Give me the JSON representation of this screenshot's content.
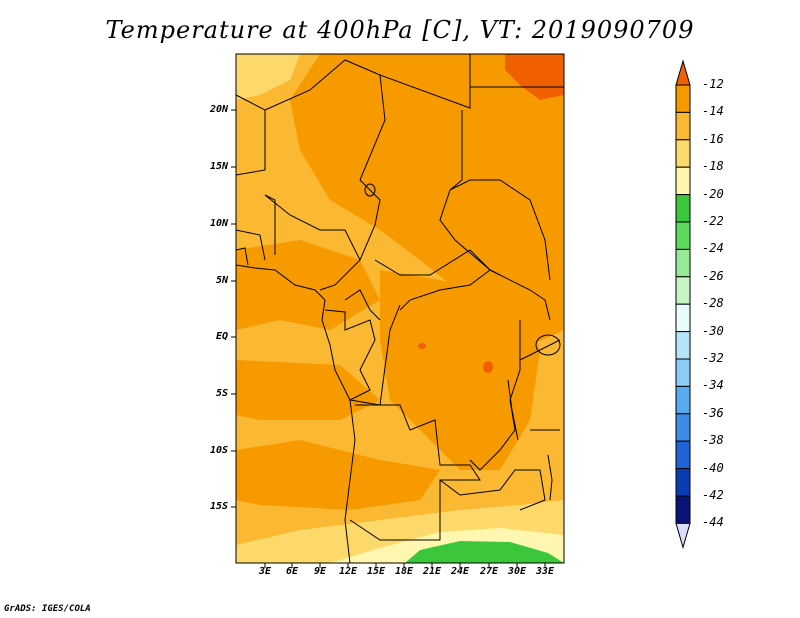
{
  "title": "Temperature at 400hPa [C], VT: 2019090709",
  "footer": "GrADS: IGES/COLA",
  "map": {
    "lat_labels": [
      "20N",
      "15N",
      "10N",
      "5N",
      "EQ",
      "5S",
      "10S",
      "15S"
    ],
    "lon_labels": [
      "3E",
      "6E",
      "9E",
      "12E",
      "15E",
      "18E",
      "21E",
      "24E",
      "27E",
      "30E",
      "33E"
    ],
    "shading": {
      "colors": {
        "-12": "#f06000",
        "-14": "#f79a00",
        "-16": "#fbb832",
        "-18": "#fcd96a",
        "-20": "#fff7b0",
        "-22": "#3cc63c"
      }
    }
  },
  "colorbar": {
    "labels": [
      "-12",
      "-14",
      "-16",
      "-18",
      "-20",
      "-22",
      "-24",
      "-26",
      "-28",
      "-30",
      "-32",
      "-34",
      "-36",
      "-38",
      "-40",
      "-42",
      "-44"
    ],
    "colors": [
      "#f06000",
      "#f79a00",
      "#fbb832",
      "#fcd96a",
      "#fff7b0",
      "#3cc63c",
      "#5ed95e",
      "#96ea96",
      "#c7f5c7",
      "#e8fcfc",
      "#b4e4f8",
      "#8ccbf4",
      "#5aaaf0",
      "#3c8ce8",
      "#1e64d8",
      "#0a3cb4",
      "#0a1478"
    ],
    "lower_arrow_color": "#dcdcfc"
  }
}
